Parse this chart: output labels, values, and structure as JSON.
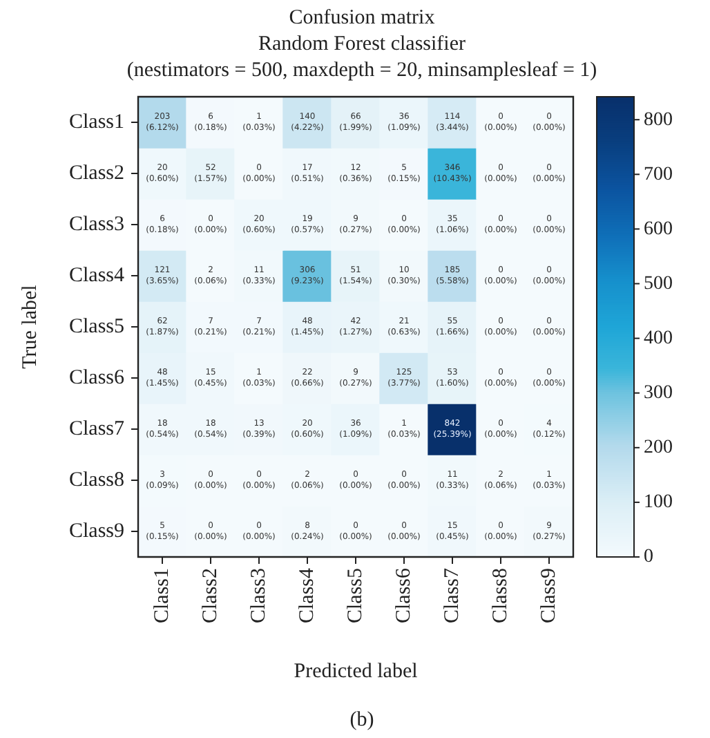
{
  "chart_data": {
    "type": "heatmap",
    "title": "Confusion matrix",
    "subtitle": "Random Forest classifier\n(nestimators = 500, maxdepth = 20, minsamplesleaf = 1)",
    "xlabel": "Predicted label",
    "ylabel": "True label",
    "categories": [
      "Class1",
      "Class2",
      "Class3",
      "Class4",
      "Class5",
      "Class6",
      "Class7",
      "Class8",
      "Class9"
    ],
    "y_categories": [
      "Class1",
      "Class2",
      "Class3",
      "Class4",
      "Class5",
      "Class6",
      "Class7",
      "Class8",
      "Class9"
    ],
    "cells": [
      [
        203,
        6,
        1,
        140,
        66,
        36,
        114,
        0,
        0
      ],
      [
        20,
        52,
        0,
        17,
        12,
        5,
        346,
        0,
        0
      ],
      [
        6,
        0,
        20,
        19,
        9,
        0,
        35,
        0,
        0
      ],
      [
        121,
        2,
        11,
        306,
        51,
        10,
        185,
        0,
        0
      ],
      [
        62,
        7,
        7,
        48,
        42,
        21,
        55,
        0,
        0
      ],
      [
        48,
        15,
        1,
        22,
        9,
        125,
        53,
        0,
        0
      ],
      [
        18,
        18,
        13,
        20,
        36,
        1,
        842,
        0,
        4
      ],
      [
        3,
        0,
        0,
        2,
        0,
        0,
        11,
        2,
        1
      ],
      [
        5,
        0,
        0,
        8,
        0,
        0,
        15,
        0,
        9
      ]
    ],
    "cell_labels": [
      [
        "203\n(6.12%)",
        "6\n(0.18%)",
        "1\n(0.03%)",
        "140\n(4.22%)",
        "66\n(1.99%)",
        "36\n(1.09%)",
        "114\n(3.44%)",
        "0\n(0.00%)",
        "0\n(0.00%)"
      ],
      [
        "20\n(0.60%)",
        "52\n(1.57%)",
        "0\n(0.00%)",
        "17\n(0.51%)",
        "12\n(0.36%)",
        "5\n(0.15%)",
        "346\n(10.43%)",
        "0\n(0.00%)",
        "0\n(0.00%)"
      ],
      [
        "6\n(0.18%)",
        "0\n(0.00%)",
        "20\n(0.60%)",
        "19\n(0.57%)",
        "9\n(0.27%)",
        "0\n(0.00%)",
        "35\n(1.06%)",
        "0\n(0.00%)",
        "0\n(0.00%)"
      ],
      [
        "121\n(3.65%)",
        "2\n(0.06%)",
        "11\n(0.33%)",
        "306\n(9.23%)",
        "51\n(1.54%)",
        "10\n(0.30%)",
        "185\n(5.58%)",
        "0\n(0.00%)",
        "0\n(0.00%)"
      ],
      [
        "62\n(1.87%)",
        "7\n(0.21%)",
        "7\n(0.21%)",
        "48\n(1.45%)",
        "42\n(1.27%)",
        "21\n(0.63%)",
        "55\n(1.66%)",
        "0\n(0.00%)",
        "0\n(0.00%)"
      ],
      [
        "48\n(1.45%)",
        "15\n(0.45%)",
        "1\n(0.03%)",
        "22\n(0.66%)",
        "9\n(0.27%)",
        "125\n(3.77%)",
        "53\n(1.60%)",
        "0\n(0.00%)",
        "0\n(0.00%)"
      ],
      [
        "18\n(0.54%)",
        "18\n(0.54%)",
        "13\n(0.39%)",
        "20\n(0.60%)",
        "36\n(1.09%)",
        "1\n(0.03%)",
        "842\n(25.39%)",
        "0\n(0.00%)",
        "4\n(0.12%)"
      ],
      [
        "3\n(0.09%)",
        "0\n(0.00%)",
        "0\n(0.00%)",
        "2\n(0.06%)",
        "0\n(0.00%)",
        "0\n(0.00%)",
        "11\n(0.33%)",
        "2\n(0.06%)",
        "1\n(0.03%)"
      ],
      [
        "5\n(0.15%)",
        "0\n(0.00%)",
        "0\n(0.00%)",
        "8\n(0.24%)",
        "0\n(0.00%)",
        "0\n(0.00%)",
        "15\n(0.45%)",
        "0\n(0.00%)",
        "9\n(0.27%)"
      ]
    ],
    "clim": [
      0,
      842
    ],
    "cticks": [
      0,
      100,
      200,
      300,
      400,
      500,
      600,
      700,
      800
    ],
    "annotations": [
      "(b)"
    ]
  }
}
